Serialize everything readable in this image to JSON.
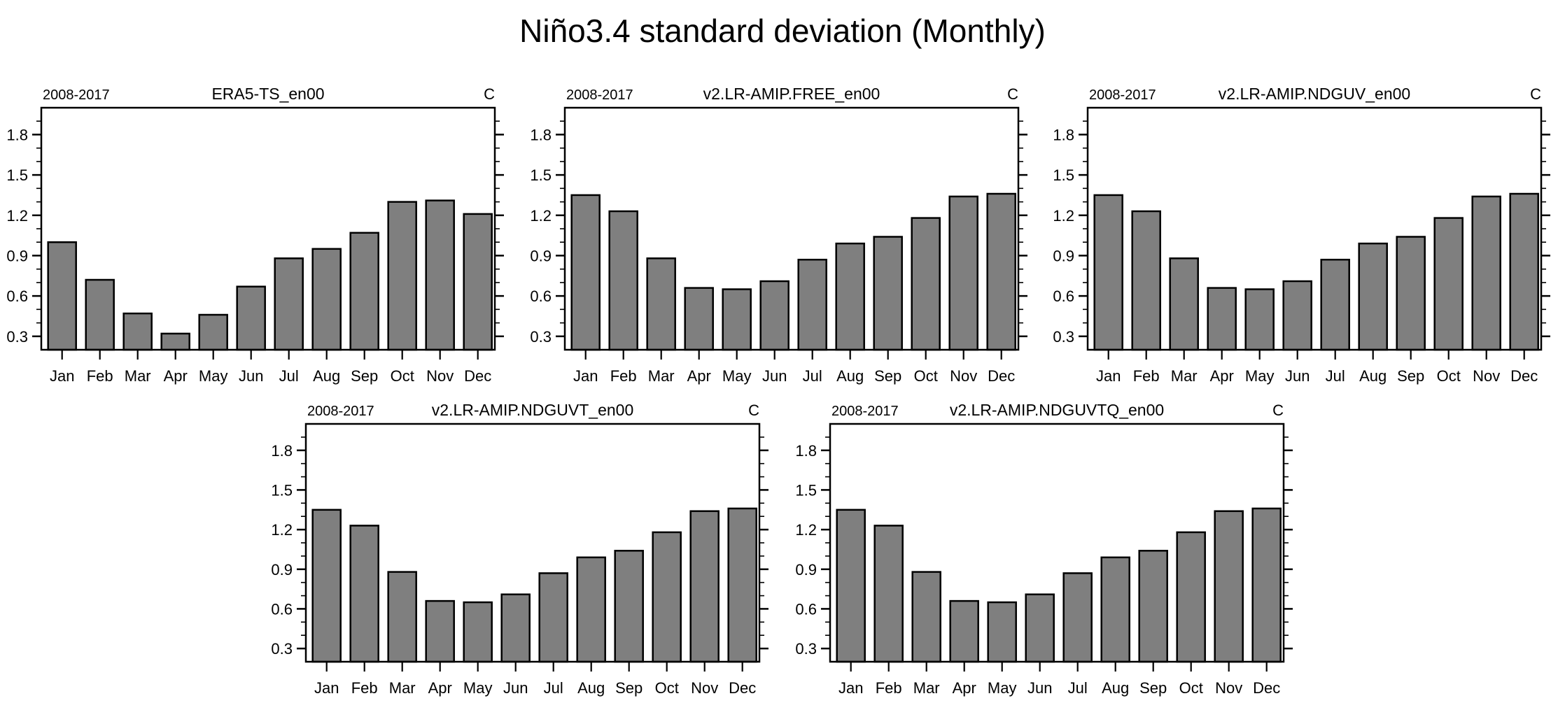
{
  "figure_title": "Niño3.4 standard deviation (Monthly)",
  "background_color": "#ffffff",
  "text_color": "#000000",
  "axis_color": "#000000",
  "chart_data": [
    {
      "type": "bar",
      "title": "ERA5-TS_en00",
      "period": "2008-2017",
      "units": "C",
      "categories": [
        "Jan",
        "Feb",
        "Mar",
        "Apr",
        "May",
        "Jun",
        "Jul",
        "Aug",
        "Sep",
        "Oct",
        "Nov",
        "Dec"
      ],
      "values": [
        1.0,
        0.72,
        0.47,
        0.32,
        0.46,
        0.67,
        0.88,
        0.95,
        1.07,
        1.3,
        1.31,
        1.21
      ],
      "xlabel": "",
      "ylabel": "",
      "ylim": [
        0.2,
        2.0
      ],
      "ytick_labels": [
        "0.3",
        "0.6",
        "0.9",
        "1.2",
        "1.5",
        "1.8"
      ],
      "ytick_values": [
        0.3,
        0.6,
        0.9,
        1.2,
        1.5,
        1.8
      ],
      "minor_tick_step": 0.1,
      "grid": false,
      "legend": null,
      "bar_fill": "#7f7f7f",
      "bar_stroke": "#000000"
    },
    {
      "type": "bar",
      "title": "v2.LR-AMIP.FREE_en00",
      "period": "2008-2017",
      "units": "C",
      "categories": [
        "Jan",
        "Feb",
        "Mar",
        "Apr",
        "May",
        "Jun",
        "Jul",
        "Aug",
        "Sep",
        "Oct",
        "Nov",
        "Dec"
      ],
      "values": [
        1.35,
        1.23,
        0.88,
        0.66,
        0.65,
        0.71,
        0.87,
        0.99,
        1.04,
        1.18,
        1.34,
        1.36
      ],
      "xlabel": "",
      "ylabel": "",
      "ylim": [
        0.2,
        2.0
      ],
      "ytick_labels": [
        "0.3",
        "0.6",
        "0.9",
        "1.2",
        "1.5",
        "1.8"
      ],
      "ytick_values": [
        0.3,
        0.6,
        0.9,
        1.2,
        1.5,
        1.8
      ],
      "minor_tick_step": 0.1,
      "grid": false,
      "legend": null,
      "bar_fill": "#7f7f7f",
      "bar_stroke": "#000000"
    },
    {
      "type": "bar",
      "title": "v2.LR-AMIP.NDGUV_en00",
      "period": "2008-2017",
      "units": "C",
      "categories": [
        "Jan",
        "Feb",
        "Mar",
        "Apr",
        "May",
        "Jun",
        "Jul",
        "Aug",
        "Sep",
        "Oct",
        "Nov",
        "Dec"
      ],
      "values": [
        1.35,
        1.23,
        0.88,
        0.66,
        0.65,
        0.71,
        0.87,
        0.99,
        1.04,
        1.18,
        1.34,
        1.36
      ],
      "xlabel": "",
      "ylabel": "",
      "ylim": [
        0.2,
        2.0
      ],
      "ytick_labels": [
        "0.3",
        "0.6",
        "0.9",
        "1.2",
        "1.5",
        "1.8"
      ],
      "ytick_values": [
        0.3,
        0.6,
        0.9,
        1.2,
        1.5,
        1.8
      ],
      "minor_tick_step": 0.1,
      "grid": false,
      "legend": null,
      "bar_fill": "#7f7f7f",
      "bar_stroke": "#000000"
    },
    {
      "type": "bar",
      "title": "v2.LR-AMIP.NDGUVT_en00",
      "period": "2008-2017",
      "units": "C",
      "categories": [
        "Jan",
        "Feb",
        "Mar",
        "Apr",
        "May",
        "Jun",
        "Jul",
        "Aug",
        "Sep",
        "Oct",
        "Nov",
        "Dec"
      ],
      "values": [
        1.35,
        1.23,
        0.88,
        0.66,
        0.65,
        0.71,
        0.87,
        0.99,
        1.04,
        1.18,
        1.34,
        1.36
      ],
      "xlabel": "",
      "ylabel": "",
      "ylim": [
        0.2,
        2.0
      ],
      "ytick_labels": [
        "0.3",
        "0.6",
        "0.9",
        "1.2",
        "1.5",
        "1.8"
      ],
      "ytick_values": [
        0.3,
        0.6,
        0.9,
        1.2,
        1.5,
        1.8
      ],
      "minor_tick_step": 0.1,
      "grid": false,
      "legend": null,
      "bar_fill": "#7f7f7f",
      "bar_stroke": "#000000"
    },
    {
      "type": "bar",
      "title": "v2.LR-AMIP.NDGUVTQ_en00",
      "period": "2008-2017",
      "units": "C",
      "categories": [
        "Jan",
        "Feb",
        "Mar",
        "Apr",
        "May",
        "Jun",
        "Jul",
        "Aug",
        "Sep",
        "Oct",
        "Nov",
        "Dec"
      ],
      "values": [
        1.35,
        1.23,
        0.88,
        0.66,
        0.65,
        0.71,
        0.87,
        0.99,
        1.04,
        1.18,
        1.34,
        1.36
      ],
      "xlabel": "",
      "ylabel": "",
      "ylim": [
        0.2,
        2.0
      ],
      "ytick_labels": [
        "0.3",
        "0.6",
        "0.9",
        "1.2",
        "1.5",
        "1.8"
      ],
      "ytick_values": [
        0.3,
        0.6,
        0.9,
        1.2,
        1.5,
        1.8
      ],
      "minor_tick_step": 0.1,
      "grid": false,
      "legend": null,
      "bar_fill": "#7f7f7f",
      "bar_stroke": "#000000"
    }
  ]
}
